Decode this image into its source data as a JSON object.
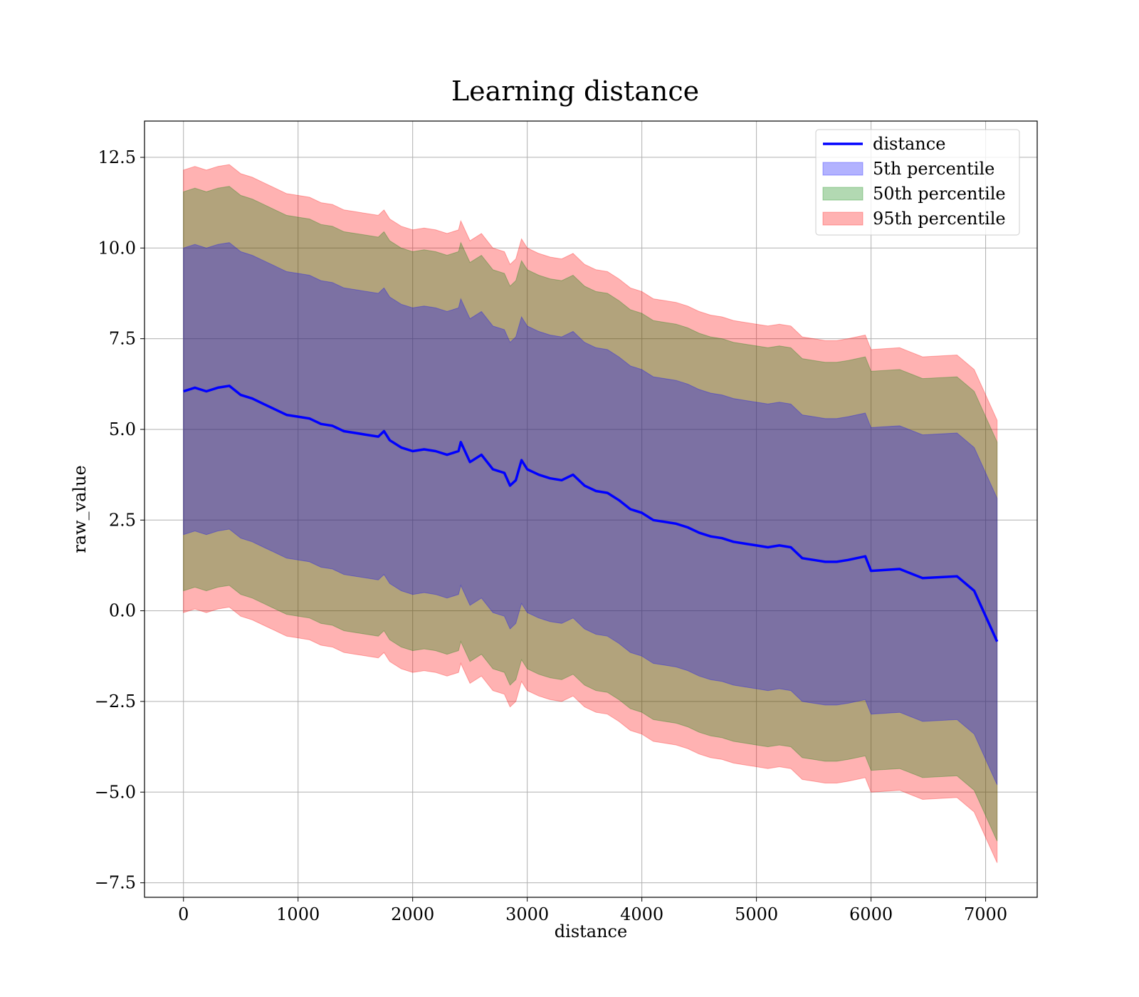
{
  "chart_data": {
    "type": "area",
    "title": "Learning distance",
    "xlabel": "distance",
    "ylabel": "raw_value",
    "xlim": [
      -340,
      7450
    ],
    "ylim": [
      -7.9,
      13.5
    ],
    "xticks": [
      0,
      1000,
      2000,
      3000,
      4000,
      5000,
      6000,
      7000
    ],
    "yticks": [
      -7.5,
      -5.0,
      -2.5,
      0.0,
      2.5,
      5.0,
      7.5,
      10.0,
      12.5
    ],
    "xtick_labels": [
      "0",
      "1000",
      "2000",
      "3000",
      "4000",
      "5000",
      "6000",
      "7000"
    ],
    "ytick_labels": [
      "−7.5",
      "−5.0",
      "−2.5",
      "0.0",
      "2.5",
      "5.0",
      "7.5",
      "10.0",
      "12.5"
    ],
    "grid": true,
    "legend_position": "top-right",
    "x": [
      0,
      100,
      200,
      300,
      400,
      500,
      600,
      700,
      800,
      900,
      1000,
      1100,
      1200,
      1300,
      1400,
      1500,
      1600,
      1700,
      1750,
      1800,
      1900,
      2000,
      2100,
      2200,
      2300,
      2400,
      2420,
      2500,
      2600,
      2700,
      2800,
      2850,
      2900,
      2950,
      3000,
      3100,
      3200,
      3300,
      3400,
      3500,
      3600,
      3700,
      3800,
      3900,
      4000,
      4100,
      4200,
      4300,
      4400,
      4500,
      4600,
      4700,
      4800,
      4900,
      5000,
      5100,
      5200,
      5300,
      5400,
      5500,
      5600,
      5700,
      5800,
      5950,
      6000,
      6250,
      6450,
      6750,
      6900,
      7100
    ],
    "series": [
      {
        "name": "distance",
        "kind": "line",
        "color": "#0000ff",
        "values": [
          6.05,
          6.15,
          6.05,
          6.15,
          6.2,
          5.95,
          5.85,
          5.7,
          5.55,
          5.4,
          5.35,
          5.3,
          5.15,
          5.1,
          4.95,
          4.9,
          4.85,
          4.8,
          4.95,
          4.7,
          4.5,
          4.4,
          4.45,
          4.4,
          4.3,
          4.4,
          4.65,
          4.1,
          4.3,
          3.9,
          3.8,
          3.45,
          3.6,
          4.15,
          3.9,
          3.75,
          3.65,
          3.6,
          3.75,
          3.45,
          3.3,
          3.25,
          3.05,
          2.8,
          2.7,
          2.5,
          2.45,
          2.4,
          2.3,
          2.15,
          2.05,
          2.0,
          1.9,
          1.85,
          1.8,
          1.75,
          1.8,
          1.75,
          1.45,
          1.4,
          1.35,
          1.35,
          1.4,
          1.5,
          1.1,
          1.15,
          0.9,
          0.95,
          0.55,
          -0.85
        ]
      },
      {
        "name": "5th percentile",
        "kind": "band",
        "color": "#0000ff",
        "half_width": 3.95
      },
      {
        "name": "50th percentile",
        "kind": "band",
        "color": "#008000",
        "half_width": 5.5
      },
      {
        "name": "95th percentile",
        "kind": "band",
        "color": "#ff0000",
        "half_width": 6.1
      }
    ]
  }
}
